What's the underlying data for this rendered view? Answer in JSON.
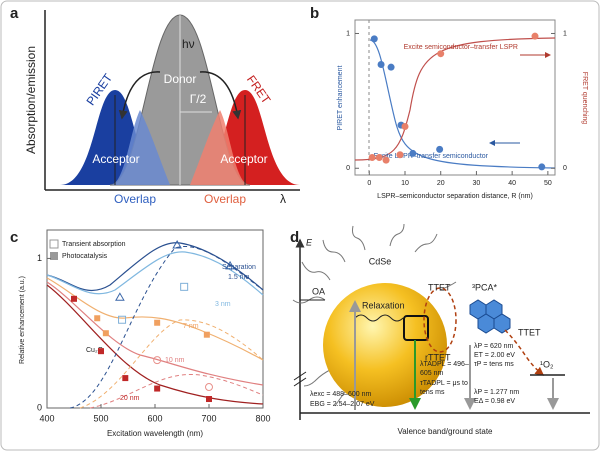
{
  "panel_a": {
    "label": "a",
    "y_axis": "Absorption/emission",
    "x_axis": "λ",
    "hv": "hν",
    "donor": "Donor",
    "gamma": "Γ/2",
    "piret": "PIRET",
    "fret": "FRET",
    "acceptor_left": "Acceptor",
    "acceptor_right": "Acceptor",
    "overlap_left": "Overlap",
    "overlap_right": "Overlap"
  },
  "panel_b": {
    "label": "b",
    "xlabel": "LSPR–semiconductor separation distance, R (nm)",
    "ylabel": "PIRET enhancement",
    "y2label": "FRET quenching",
    "annotation_top": "Excite semiconductor–transfer LSPR",
    "annotation_bottom": "Excite LSPR–transfer semiconductor",
    "xlim": [
      -4,
      52
    ],
    "ylim": [
      -0.05,
      1.1
    ],
    "y2lim": [
      -0.05,
      1.1
    ],
    "xticks": [
      0,
      10,
      20,
      30,
      40,
      50
    ],
    "yticks": [
      0,
      1
    ],
    "y2ticks": [
      0,
      1
    ],
    "series": [
      {
        "color": "#4a7cc4",
        "x": [
          1.4,
          3.3,
          6.1,
          8.9,
          12.2,
          19.7,
          48.3
        ],
        "values": [
          0.96,
          0.77,
          0.75,
          0.32,
          0.11,
          0.14,
          0.01
        ]
      },
      {
        "color": "#e8806a",
        "axis": "y2",
        "x": [
          0.8,
          2.8,
          4.7,
          8.6,
          10,
          20,
          46.4
        ],
        "values": [
          0.08,
          0.08,
          0.06,
          0.1,
          0.31,
          0.85,
          0.98
        ]
      }
    ]
  },
  "panel_c": {
    "label": "c",
    "xlabel": "Excitation wavelength (nm)",
    "ylabel": "Relative enhancement (a.u.)",
    "legend": [
      "Transient absorption",
      "Photocatalysis"
    ],
    "xlim": [
      400,
      800
    ],
    "ylim": [
      0,
      1.19
    ],
    "xticks": [
      400,
      500,
      600,
      700,
      800
    ],
    "yticks": [
      0,
      1
    ],
    "curve_labels": {
      "separation": "Separation",
      "s1": "1.5 nm",
      "s3": "3 nm",
      "s7": "7 nm",
      "s10": "10 nm",
      "s20": "20 nm",
      "cu2o": "Cu₂O"
    },
    "series": [
      {
        "color": "#3a66a8",
        "marker": "triangle",
        "x": [
          535,
          641,
          739
        ],
        "values": [
          0.74,
          1.09,
          0.95
        ]
      },
      {
        "color": "#7fb0d8",
        "marker": "open-square",
        "x": [
          539,
          654
        ],
        "values": [
          0.59,
          0.81
        ]
      },
      {
        "color": "#f0a060",
        "marker": "square",
        "x": [
          493,
          509,
          604,
          696
        ],
        "values": [
          0.6,
          0.5,
          0.57,
          0.49
        ]
      },
      {
        "color": "#e8908a",
        "marker": "circle",
        "x": [
          604,
          700
        ],
        "values": [
          0.32,
          0.14
        ]
      },
      {
        "color": "#c02828",
        "marker": "square",
        "x": [
          450,
          500,
          545,
          604,
          700
        ],
        "values": [
          0.73,
          0.38,
          0.2,
          0.13,
          0.06
        ]
      }
    ]
  },
  "panel_d": {
    "label": "d",
    "energy": "E",
    "cdse": "CdSe",
    "oa": "OA",
    "relaxation": "Relaxation",
    "ttet1": "TTET",
    "pca": "³PCA*",
    "ttet2": "TTET",
    "rttet": "rTTET",
    "o2": "¹O₂",
    "exc1": "λexc = 488–600 nm",
    "exc2": "EBG = 2.54–2.07 eV",
    "tad1": "λTADPL = 496–",
    "tad2": "605 nm",
    "tad3": "τTADPL = μs to",
    "tad4": "tens ms",
    "p1": "λP = 620 nm",
    "p2": "ET = 2.00 eV",
    "p3": "τP = tens ms",
    "o1": "λP = 1.277 nm",
    "o2e": "EΔ = 0.98 eV",
    "ground": "Valence band/ground state"
  }
}
